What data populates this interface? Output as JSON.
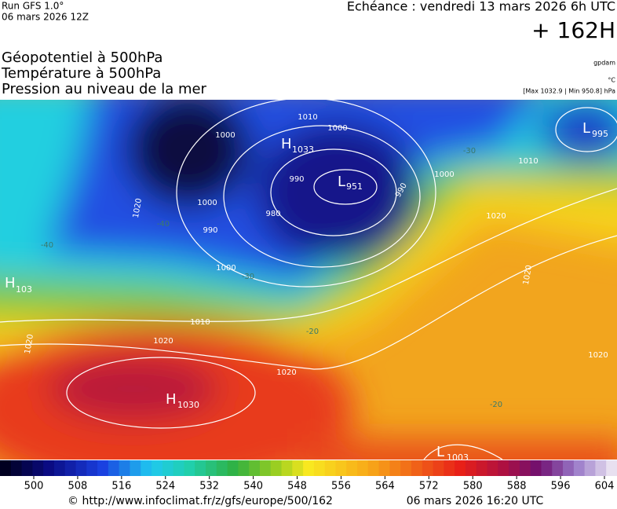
{
  "header": {
    "run": "Run GFS 1.0°",
    "run_date": "06 mars 2026 12Z",
    "forecast": "Echéance : vendredi 13 mars 2026 6h UTC",
    "lead": "+ 162H",
    "titles": [
      "Géopotentiel à 500hPa",
      "Température à 500hPa",
      "Pression au niveau de la mer"
    ],
    "unit_geo": "gpdam",
    "unit_temp": "°C",
    "range": "[Max 1032.9 | Min 950.8] hPa"
  },
  "map": {
    "centers": [
      {
        "letter": "H",
        "value": "1033"
      },
      {
        "letter": "L",
        "value": "951"
      },
      {
        "letter": "L",
        "value": "995"
      },
      {
        "letter": "H",
        "value": "103"
      },
      {
        "letter": "H",
        "value": "1030"
      },
      {
        "letter": "L",
        "value": "1003"
      }
    ],
    "isobar_labels": [
      "1010",
      "1000",
      "1000",
      "990",
      "980",
      "990",
      "1000",
      "1000",
      "1010",
      "1020",
      "1020",
      "1020",
      "1020",
      "1010",
      "1020",
      "990",
      "1020",
      "1020",
      "1000"
    ],
    "isotherm_labels": [
      "-40",
      "-40",
      "-30",
      "-20",
      "-20",
      "-30"
    ]
  },
  "colorbar": {
    "ticks": [
      500,
      508,
      516,
      524,
      532,
      540,
      548,
      556,
      564,
      572,
      580,
      588,
      596,
      604
    ]
  },
  "footer": {
    "source": "© http://www.infoclimat.fr/z/gfs/europe/500/162",
    "generated": "06 mars 2026 16:20 UTC"
  }
}
